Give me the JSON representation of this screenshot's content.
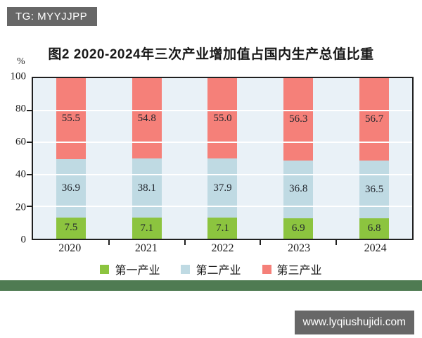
{
  "watermarks": {
    "top_left": "TG: MYYJJPP",
    "bottom_right": "www.lyqiushujidi.com"
  },
  "chart_data": {
    "type": "bar",
    "stacked": true,
    "title": "图2  2020-2024年三次产业增加值占国内生产总值比重",
    "ylabel": "%",
    "ylim": [
      0,
      100
    ],
    "yticks": [
      0,
      20,
      40,
      60,
      80,
      100
    ],
    "grid": true,
    "legend_position": "bottom",
    "categories": [
      "2020",
      "2021",
      "2022",
      "2023",
      "2024"
    ],
    "series": [
      {
        "name": "第一产业",
        "color": "#8cc43f",
        "values": [
          7.5,
          7.1,
          7.1,
          6.9,
          6.8
        ]
      },
      {
        "name": "第二产业",
        "color": "#bfdae3",
        "values": [
          36.9,
          38.1,
          37.9,
          36.8,
          36.5
        ]
      },
      {
        "name": "第三产业",
        "color": "#f58079",
        "values": [
          55.5,
          54.8,
          55.0,
          56.3,
          56.7
        ]
      }
    ]
  },
  "colors": {
    "watermark_bg": "#676767",
    "divider_green": "#4f7b52",
    "plot_bg": "#e9f1f7",
    "axis": "#202020"
  }
}
